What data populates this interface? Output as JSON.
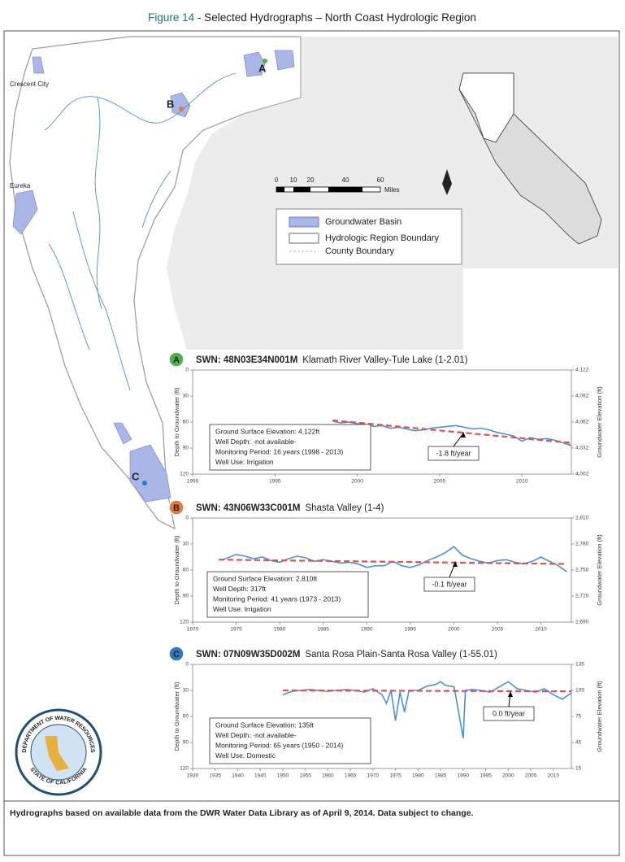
{
  "figure_number": "Figure 14",
  "figure_caption": " - Selected Hydrographs – North Coast Hydrologic Region",
  "footer": "Hydrographs based on available data from the DWR Water Data Library as of April 9, 2014.  Data subject to change.",
  "map": {
    "well_labels": [
      "A",
      "B",
      "C"
    ],
    "cities": [
      "Crescent City",
      "Eureka"
    ],
    "scale": [
      "0",
      "10",
      "20",
      "40",
      "60"
    ],
    "scale_unit": "Miles",
    "north": "N",
    "legend": [
      "Groundwater Basin",
      "Hydrologic Region Boundary",
      "County Boundary"
    ]
  },
  "seal": [
    "DEPARTMENT OF WATER RESOURCES",
    "STATE OF CALIFORNIA"
  ],
  "chart_data": [
    {
      "type": "line",
      "badge": "A",
      "badge_color": "#4caf50",
      "well_id": "SWN: 48N03E34N001M",
      "title": "Klamath River Valley-Tule Lake (1-2.01)",
      "y_label": "Depth to Groundwater (ft)",
      "y2_label": "Groundwater Elevation (ft)",
      "xlim": [
        1990,
        2013
      ],
      "xticks": [
        1990,
        1995,
        2000,
        2005,
        2010
      ],
      "ylim": [
        0,
        120
      ],
      "y_inverted": true,
      "yticks": [
        0,
        30,
        60,
        90,
        120
      ],
      "y2lim": [
        4002,
        4122
      ],
      "y2ticks": [
        {
          "value": 4122,
          "label": "4,122"
        },
        {
          "value": 4092,
          "label": "4,092"
        },
        {
          "value": 4062,
          "label": "4,062"
        },
        {
          "value": 4032,
          "label": "4,032"
        },
        {
          "value": 4002,
          "label": "4,002"
        }
      ],
      "series": [
        {
          "color": "#4a90d9",
          "x": [
            1998.5,
            1999,
            1999.5,
            2000,
            2000.5,
            2001,
            2001.5,
            2002,
            2002.5,
            2003,
            2003.5,
            2004,
            2004.5,
            2005,
            2005.5,
            2006,
            2006.5,
            2007,
            2007.5,
            2008,
            2008.5,
            2009,
            2009.5,
            2010,
            2010.5,
            2011,
            2011.5,
            2012,
            2012.5,
            2013
          ],
          "values": [
            59,
            61,
            60,
            62,
            63,
            65,
            64,
            67,
            66,
            68,
            70,
            69,
            67,
            66,
            65,
            64,
            66,
            68,
            67,
            69,
            72,
            74,
            76,
            82,
            78,
            80,
            79,
            81,
            84,
            87
          ]
        },
        {
          "color": "#d9534f",
          "dashed": true,
          "x": [
            1998.5,
            2013
          ],
          "values": [
            58,
            84
          ]
        }
      ],
      "trend_label": "-1.8 ft/year",
      "info": [
        "Ground Surface Elevation: 4,122ft",
        "Well Depth: -not available-",
        "Monitoring Period:  16 years (1998 - 2013)",
        "Well Use: Irrigation"
      ]
    },
    {
      "type": "line",
      "badge": "B",
      "badge_color": "#e07b39",
      "well_id": "SWN: 43N06W33C001M",
      "title": "Shasta Valley (1-4)",
      "y_label": "Depth to Groundwater (ft)",
      "y2_label": "Groundwater Elevation (ft)",
      "xlim": [
        1970,
        2013.5
      ],
      "xticks": [
        1970,
        1975,
        1980,
        1985,
        1990,
        1995,
        2000,
        2005,
        2010
      ],
      "ylim": [
        0,
        120
      ],
      "y_inverted": true,
      "yticks": [
        0,
        30,
        60,
        90,
        120
      ],
      "y2lim": [
        2690,
        2810
      ],
      "y2ticks": [
        {
          "value": 2810,
          "label": "2,810"
        },
        {
          "value": 2780,
          "label": "2,780"
        },
        {
          "value": 2750,
          "label": "2,750"
        },
        {
          "value": 2720,
          "label": "2,720"
        },
        {
          "value": 2690,
          "label": "2,690"
        }
      ],
      "series": [
        {
          "color": "#4a90d9",
          "x": [
            1973.5,
            1975,
            1976,
            1977,
            1978,
            1979,
            1980,
            1981,
            1982,
            1983,
            1984,
            1985,
            1986,
            1987,
            1988,
            1989,
            1990,
            1991,
            1992,
            1993,
            1994,
            1995,
            1996,
            1997,
            1998,
            1999,
            2000,
            2001,
            2002,
            2003,
            2004,
            2005,
            2006,
            2007,
            2008,
            2009,
            2010,
            2011,
            2012,
            2013
          ],
          "values": [
            48,
            42,
            44,
            47,
            45,
            49,
            51,
            47,
            44,
            46,
            50,
            48,
            50,
            52,
            51,
            53,
            57,
            55,
            55,
            50,
            55,
            57,
            54,
            49,
            45,
            40,
            33,
            43,
            47,
            50,
            52,
            49,
            48,
            51,
            53,
            50,
            45,
            50,
            55,
            62
          ]
        },
        {
          "color": "#d9534f",
          "dashed": true,
          "x": [
            1973,
            2013
          ],
          "values": [
            48,
            53
          ]
        }
      ],
      "trend_label": "-0.1 ft/year",
      "info": [
        "Ground Surface Elevation: 2,810ft",
        "Well Depth: 317ft",
        "Monitoring Period:  41 years (1973 - 2013)",
        "Well Use: Irrigation"
      ]
    },
    {
      "type": "line",
      "badge": "C",
      "badge_color": "#2e7bbf",
      "well_id": "SWN: 07N09W35D002M",
      "title": "Santa Rosa Plain-Santa Rosa Valley (1-55.01)",
      "y_label": "Depth to Groundwater (ft)",
      "y2_label": "Groundwater Elevation (ft)",
      "xlim": [
        1930,
        2014
      ],
      "xticks": [
        1930,
        1935,
        1940,
        1945,
        1950,
        1955,
        1960,
        1965,
        1970,
        1975,
        1980,
        1985,
        1990,
        1995,
        2000,
        2005,
        2010
      ],
      "ylim": [
        0,
        120
      ],
      "y_inverted": true,
      "yticks": [
        0,
        30,
        60,
        90,
        120
      ],
      "y2lim": [
        15,
        135
      ],
      "y2ticks": [
        135,
        105,
        75,
        45,
        15
      ],
      "series": [
        {
          "color": "#4a90d9",
          "x": [
            1950,
            1951,
            1952,
            1954,
            1956,
            1958,
            1960,
            1962,
            1964,
            1966,
            1968,
            1970,
            1972,
            1973,
            1974,
            1975,
            1976,
            1977,
            1978,
            1980,
            1982,
            1984,
            1985,
            1986,
            1988,
            1990,
            1990.5,
            1992,
            1994,
            1996,
            1998,
            2000,
            2002,
            2004,
            2006,
            2008,
            2010,
            2012,
            2014
          ],
          "values": [
            35,
            33,
            31,
            30,
            29,
            30,
            31,
            30,
            29,
            30,
            32,
            28,
            35,
            45,
            30,
            65,
            32,
            55,
            30,
            30,
            25,
            23,
            20,
            24,
            26,
            85,
            30,
            29,
            30,
            32,
            26,
            20,
            28,
            30,
            32,
            28,
            35,
            40,
            33
          ]
        },
        {
          "color": "#d9534f",
          "dashed": true,
          "x": [
            1950,
            2014
          ],
          "values": [
            30,
            31
          ]
        }
      ],
      "trend_label": "0.0 ft/year",
      "info": [
        "Ground Surface Elevation: 135ft",
        "Well Depth: -not available-",
        "Monitoring Period: 65 years (1950 - 2014)",
        "Well Use: Domestic"
      ]
    }
  ]
}
